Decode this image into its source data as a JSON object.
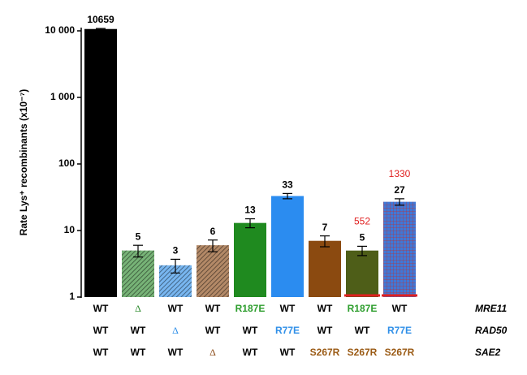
{
  "chart_data": {
    "type": "bar",
    "ylabel": "Rate Lys⁺ recombinants (x10⁻⁷)",
    "log_scale": true,
    "values": [
      10659,
      5,
      3,
      6,
      13,
      33,
      7,
      5,
      27
    ],
    "errors": [
      200,
      1,
      0.7,
      1.2,
      2,
      3,
      1.3,
      0.8,
      3
    ],
    "colors": [
      "#000000",
      "#2e8b2e",
      "#2f8fe8",
      "#8b4a16",
      "#1f8a1f",
      "#2b8cf0",
      "#8b4a10",
      "#4e5e18",
      "#3f78d8"
    ],
    "patterns": [
      "solid",
      "hatch",
      "hatch",
      "hatch",
      "solid",
      "solid",
      "solid",
      "solid",
      "cross"
    ],
    "value_labels": [
      "10659",
      "5",
      "3",
      "6",
      "13",
      "33",
      "7",
      "5",
      "27"
    ],
    "red_labels": [
      null,
      null,
      null,
      null,
      null,
      null,
      null,
      "552",
      "1330"
    ],
    "red_color": "#e02020",
    "ylim": [
      1,
      10000
    ],
    "yticks": [
      1,
      10,
      100,
      {
        "value": 1000,
        "label": "1 000"
      },
      {
        "value": 10000,
        "label": "10 000"
      }
    ]
  },
  "genotypes": [
    {
      "name": "MRE11",
      "cells": [
        {
          "text": "WT",
          "color": "#000"
        },
        {
          "text": "Δ",
          "color": "#2e8b2e"
        },
        {
          "text": "WT",
          "color": "#000"
        },
        {
          "text": "WT",
          "color": "#000"
        },
        {
          "text": "R187E",
          "color": "#2e9e2e"
        },
        {
          "text": "WT",
          "color": "#000"
        },
        {
          "text": "WT",
          "color": "#000"
        },
        {
          "text": "R187E",
          "color": "#2e9e2e"
        },
        {
          "text": "WT",
          "color": "#000"
        }
      ]
    },
    {
      "name": "RAD50",
      "cells": [
        {
          "text": "WT",
          "color": "#000"
        },
        {
          "text": "WT",
          "color": "#000"
        },
        {
          "text": "Δ",
          "color": "#2f8fe8"
        },
        {
          "text": "WT",
          "color": "#000"
        },
        {
          "text": "WT",
          "color": "#000"
        },
        {
          "text": "R77E",
          "color": "#2f8fe8"
        },
        {
          "text": "WT",
          "color": "#000"
        },
        {
          "text": "WT",
          "color": "#000"
        },
        {
          "text": "R77E",
          "color": "#2f8fe8"
        }
      ]
    },
    {
      "name": "SAE2",
      "cells": [
        {
          "text": "WT",
          "color": "#000"
        },
        {
          "text": "WT",
          "color": "#000"
        },
        {
          "text": "WT",
          "color": "#000"
        },
        {
          "text": "Δ",
          "color": "#8b4a16"
        },
        {
          "text": "WT",
          "color": "#000"
        },
        {
          "text": "WT",
          "color": "#000"
        },
        {
          "text": "S267R",
          "color": "#9a5a14"
        },
        {
          "text": "S267R",
          "color": "#9a5a14"
        },
        {
          "text": "S267R",
          "color": "#9a5a14"
        }
      ]
    }
  ]
}
